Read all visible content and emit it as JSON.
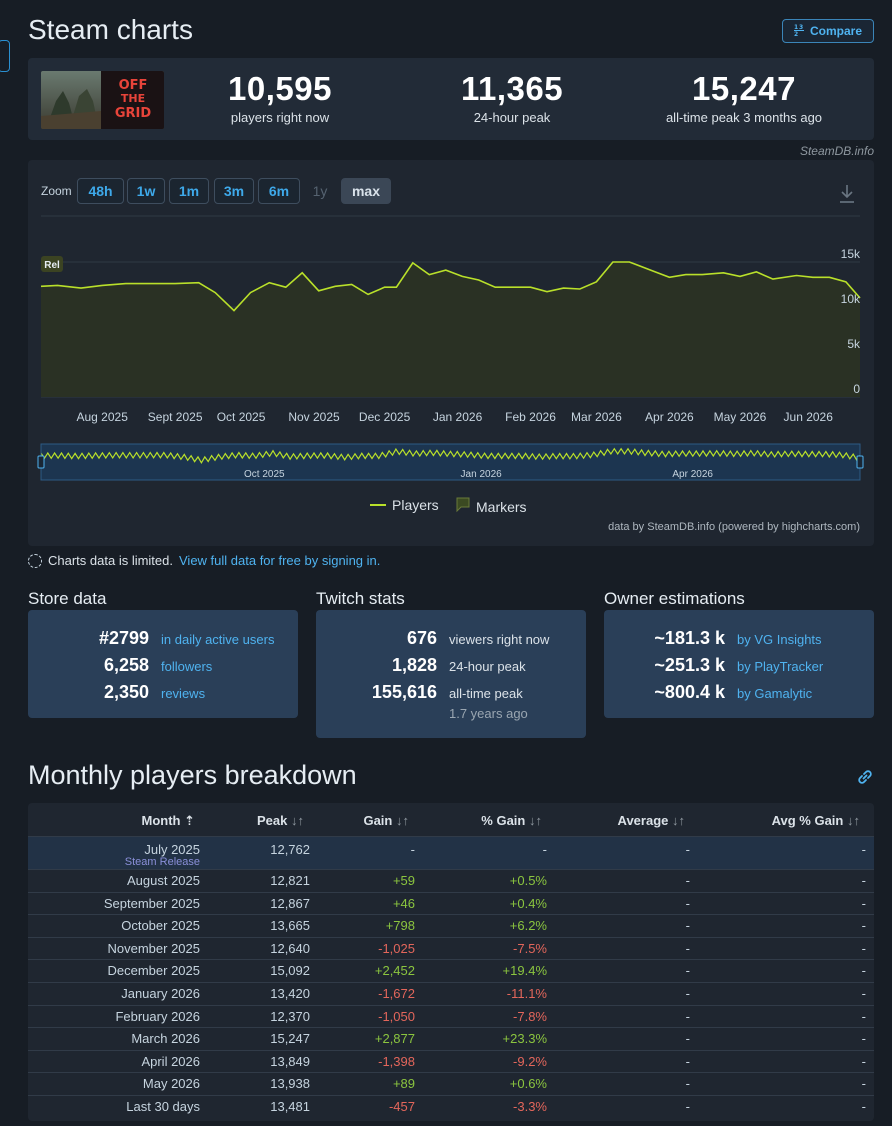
{
  "header": {
    "title": "Steam charts",
    "compare_label": "Compare"
  },
  "stats": [
    {
      "value": "10,595",
      "label": "players right now"
    },
    {
      "value": "11,365",
      "label": "24-hour peak"
    },
    {
      "value": "15,247",
      "label": "all-time peak 3 months ago"
    }
  ],
  "steamdb_credit": "SteamDB.info",
  "zoom": {
    "label": "Zoom",
    "options": [
      "48h",
      "1w",
      "1m",
      "3m",
      "6m",
      "1y",
      "max"
    ],
    "selected": "max",
    "disabled": [
      "1y"
    ]
  },
  "chart_data": {
    "type": "line",
    "x": [
      "2025-07-15",
      "2025-07-22",
      "2025-08-01",
      "2025-08-10",
      "2025-08-20",
      "2025-09-01",
      "2025-09-10",
      "2025-09-20",
      "2025-09-27",
      "2025-10-05",
      "2025-10-12",
      "2025-10-20",
      "2025-10-27",
      "2025-11-03",
      "2025-11-10",
      "2025-11-17",
      "2025-11-24",
      "2025-12-01",
      "2025-12-08",
      "2025-12-13",
      "2025-12-20",
      "2025-12-27",
      "2026-01-03",
      "2026-01-10",
      "2026-01-17",
      "2026-01-24",
      "2026-02-01",
      "2026-02-08",
      "2026-02-15",
      "2026-02-22",
      "2026-03-01",
      "2026-03-08",
      "2026-03-15",
      "2026-03-22",
      "2026-04-01",
      "2026-04-08",
      "2026-04-15",
      "2026-04-22",
      "2026-05-01",
      "2026-05-08",
      "2026-05-15",
      "2026-05-22",
      "2026-06-01",
      "2026-06-08",
      "2026-06-15",
      "2026-06-22",
      "2026-06-28"
    ],
    "series": [
      {
        "name": "Players",
        "values": [
          12300,
          12400,
          12100,
          12400,
          12600,
          12600,
          12600,
          12700,
          11600,
          9600,
          11600,
          12700,
          12200,
          13800,
          11800,
          12300,
          12500,
          11400,
          12200,
          12200,
          14900,
          13600,
          14100,
          13400,
          13000,
          12200,
          12200,
          12200,
          11700,
          12100,
          12000,
          12800,
          15000,
          15000,
          14000,
          13300,
          13600,
          13600,
          13800,
          13400,
          13900,
          13100,
          13500,
          13300,
          13300,
          12800,
          11000
        ]
      }
    ],
    "annotations": [
      "Rel"
    ],
    "x_tick_labels": [
      "Aug 2025",
      "Sept 2025",
      "Oct 2025",
      "Nov 2025",
      "Dec 2025",
      "Jan 2026",
      "Feb 2026",
      "Mar 2026",
      "Apr 2026",
      "May 2026",
      "Jun 2026"
    ],
    "y_tick_labels": [
      "15k",
      "10k",
      "5k",
      "0"
    ],
    "ylim": [
      0,
      15000
    ],
    "navigator_labels": [
      "Oct 2025",
      "Jan 2026",
      "Apr 2026"
    ],
    "legend": [
      "Players",
      "Markers"
    ],
    "legend_position": "bottom",
    "grid": true,
    "colors": {
      "line": "#b9e02a",
      "area": "#2a3124"
    },
    "credit": "data by SteamDB.info (powered by highcharts.com)"
  },
  "limited_notice": {
    "text": "Charts data is limited.",
    "link": "View full data for free by signing in."
  },
  "store_data": {
    "title": "Store data",
    "rows": [
      {
        "value": "#2799",
        "label": "in daily active users"
      },
      {
        "value": "6,258",
        "label": "followers"
      },
      {
        "value": "2,350",
        "label": "reviews"
      }
    ]
  },
  "twitch_stats": {
    "title": "Twitch stats",
    "rows": [
      {
        "value": "676",
        "label": "viewers right now"
      },
      {
        "value": "1,828",
        "label": "24-hour peak"
      },
      {
        "value": "155,616",
        "label": "all-time peak"
      }
    ],
    "note": "1.7 years ago"
  },
  "owner_estimations": {
    "title": "Owner estimations",
    "rows": [
      {
        "value": "~181.3 k",
        "label": "by VG Insights"
      },
      {
        "value": "~251.3 k",
        "label": "by PlayTracker"
      },
      {
        "value": "~800.4 k",
        "label": "by Gamalytic"
      }
    ]
  },
  "breakdown": {
    "title": "Monthly players breakdown",
    "headers": [
      "Month",
      "Peak",
      "Gain",
      "% Gain",
      "Average",
      "Avg % Gain"
    ],
    "rows": [
      {
        "month": "July 2025",
        "note": "Steam Release",
        "peak": "12,762",
        "gain": "-",
        "pct": "-",
        "avg": "-",
        "avgpct": "-"
      },
      {
        "month": "August 2025",
        "peak": "12,821",
        "gain": "+59",
        "pct": "+0.5%",
        "avg": "-",
        "avgpct": "-"
      },
      {
        "month": "September 2025",
        "peak": "12,867",
        "gain": "+46",
        "pct": "+0.4%",
        "avg": "-",
        "avgpct": "-"
      },
      {
        "month": "October 2025",
        "peak": "13,665",
        "gain": "+798",
        "pct": "+6.2%",
        "avg": "-",
        "avgpct": "-"
      },
      {
        "month": "November 2025",
        "peak": "12,640",
        "gain": "-1,025",
        "pct": "-7.5%",
        "avg": "-",
        "avgpct": "-"
      },
      {
        "month": "December 2025",
        "peak": "15,092",
        "gain": "+2,452",
        "pct": "+19.4%",
        "avg": "-",
        "avgpct": "-"
      },
      {
        "month": "January 2026",
        "peak": "13,420",
        "gain": "-1,672",
        "pct": "-11.1%",
        "avg": "-",
        "avgpct": "-"
      },
      {
        "month": "February 2026",
        "peak": "12,370",
        "gain": "-1,050",
        "pct": "-7.8%",
        "avg": "-",
        "avgpct": "-"
      },
      {
        "month": "March 2026",
        "peak": "15,247",
        "gain": "+2,877",
        "pct": "+23.3%",
        "avg": "-",
        "avgpct": "-"
      },
      {
        "month": "April 2026",
        "peak": "13,849",
        "gain": "-1,398",
        "pct": "-9.2%",
        "avg": "-",
        "avgpct": "-"
      },
      {
        "month": "May 2026",
        "peak": "13,938",
        "gain": "+89",
        "pct": "+0.6%",
        "avg": "-",
        "avgpct": "-"
      },
      {
        "month": "Last 30 days",
        "peak": "13,481",
        "gain": "-457",
        "pct": "-3.3%",
        "avg": "-",
        "avgpct": "-"
      }
    ]
  }
}
